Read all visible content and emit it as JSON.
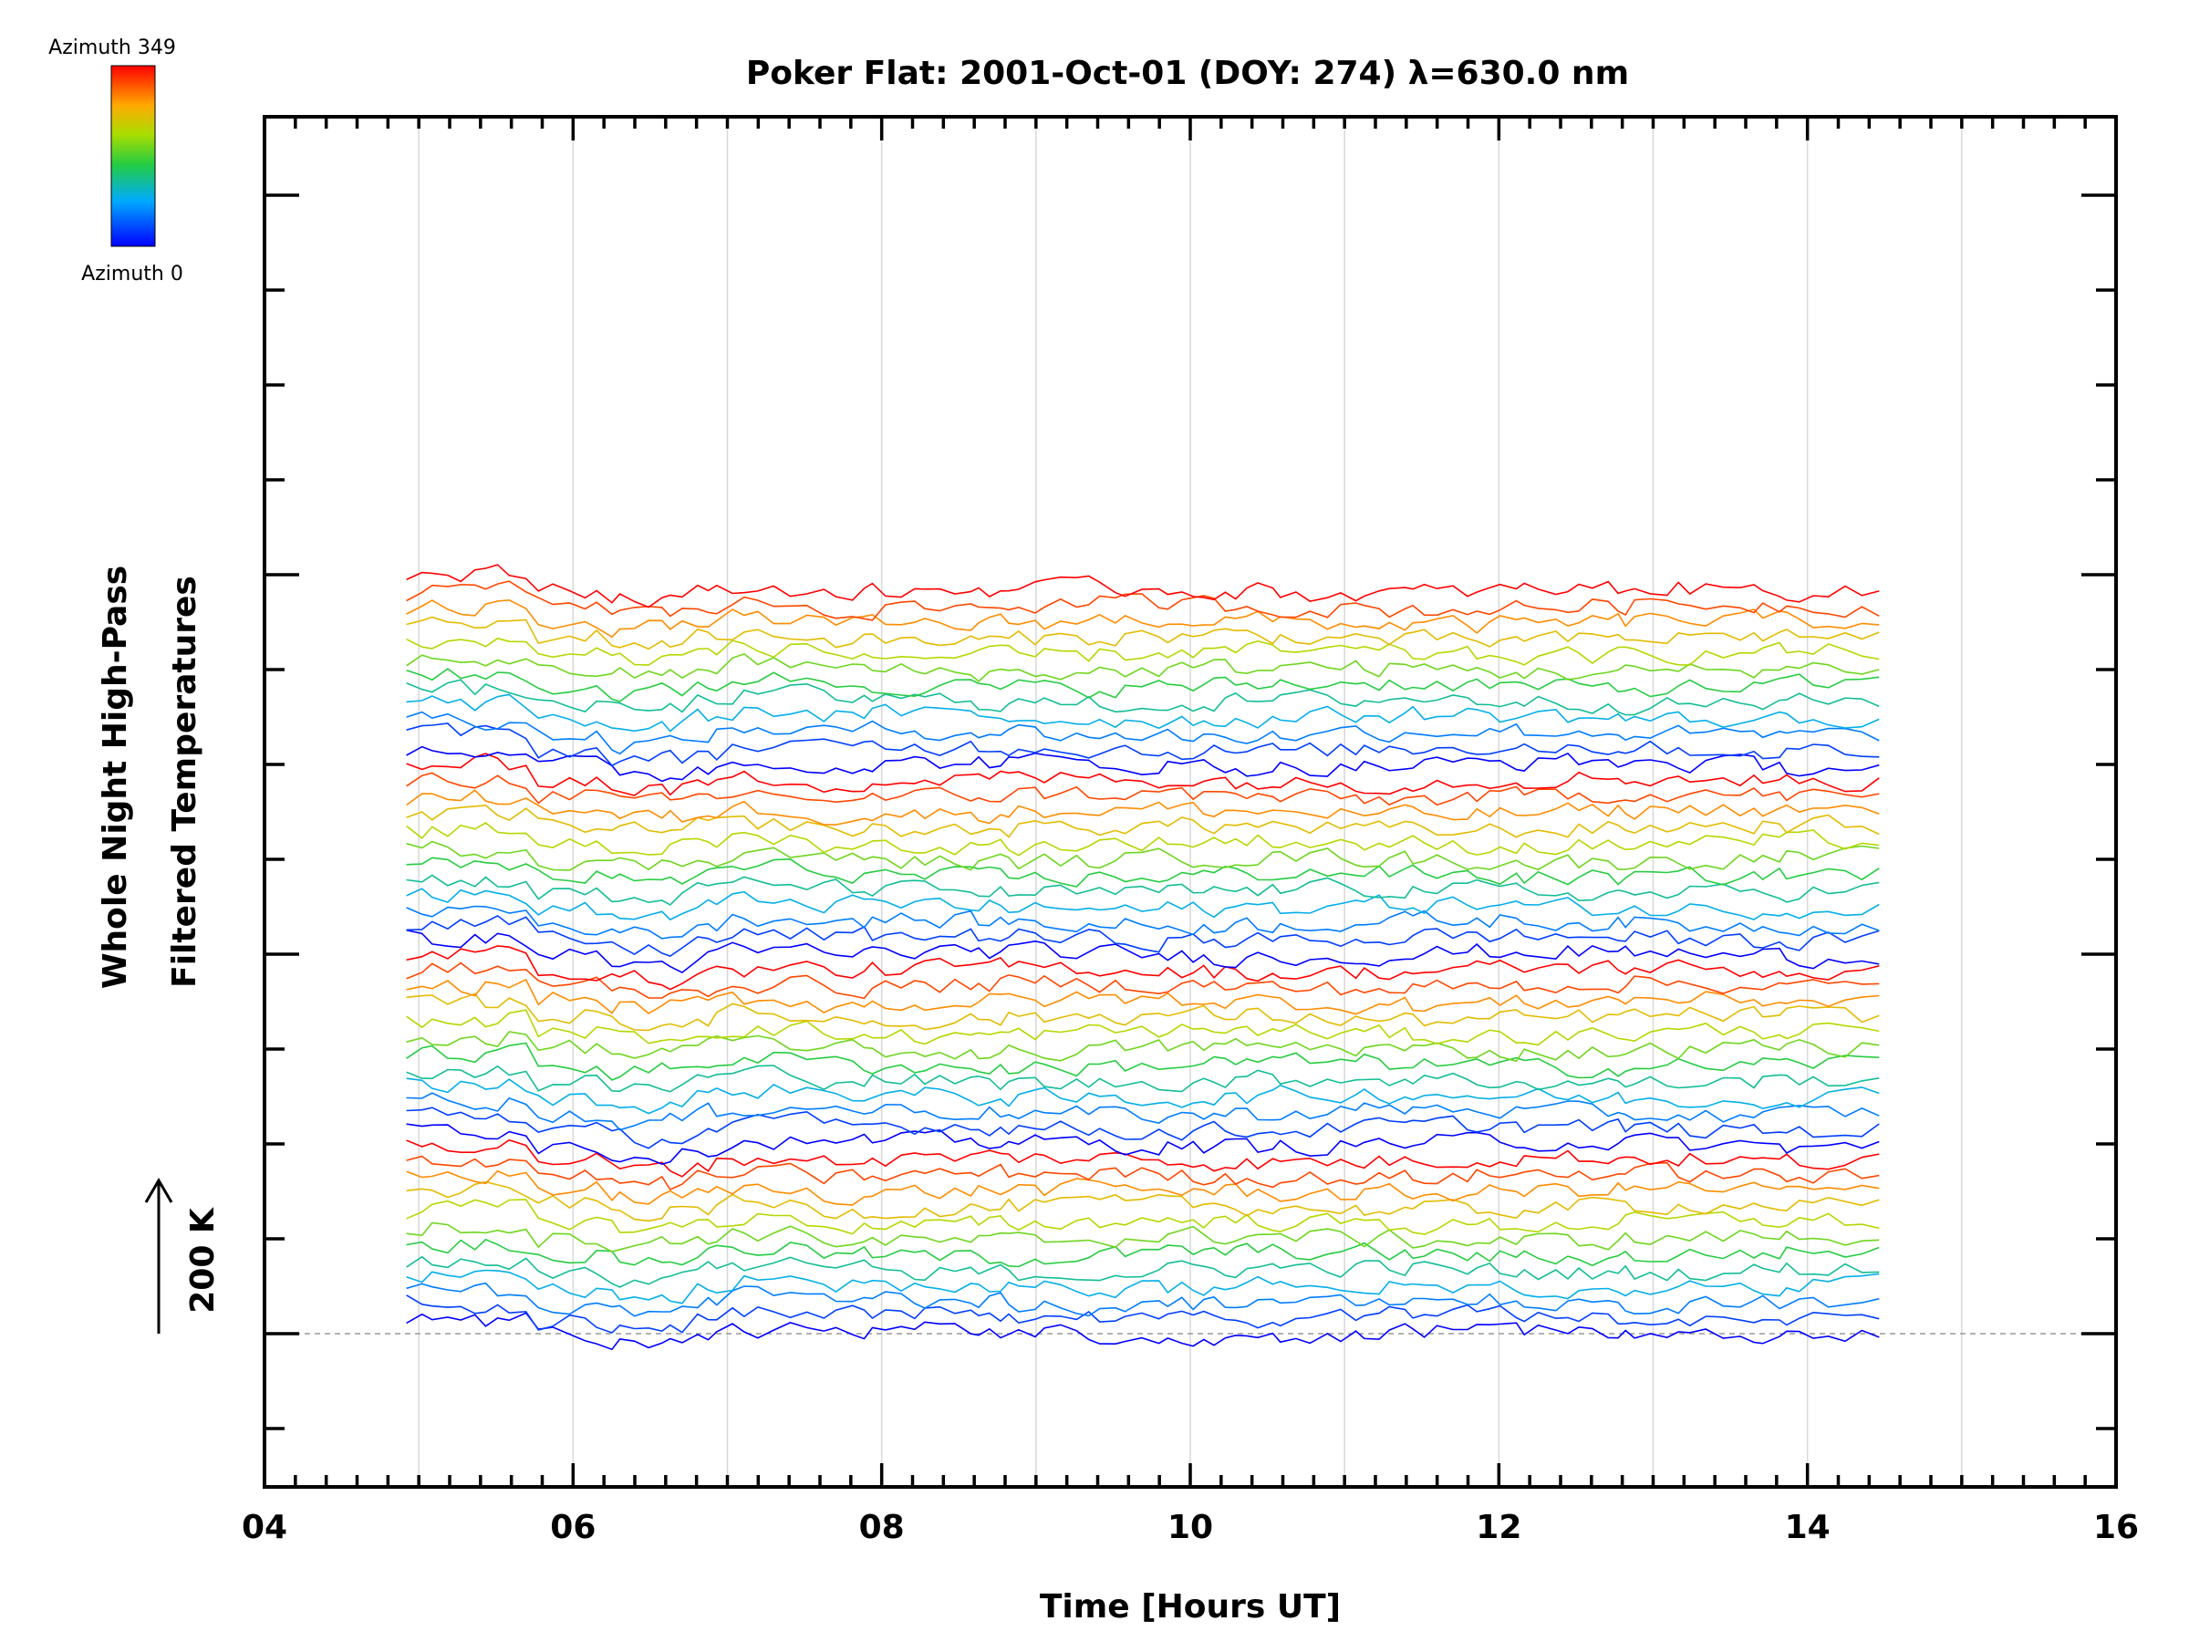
{
  "chart_data": {
    "type": "line",
    "title": "Poker Flat: 2001-Oct-01 (DOY: 274) λ=630.0 nm",
    "xlabel": "Time [Hours UT]",
    "ylabel_line1": "Whole Night High-Pass",
    "ylabel_line2": "Filtered Temperatures",
    "scale_label": "200 K",
    "scale_value_K": 200,
    "xlim": [
      4,
      16
    ],
    "x_ticks": [
      4,
      6,
      8,
      10,
      12,
      14,
      16
    ],
    "x_tick_labels": [
      "04",
      "06",
      "08",
      "10",
      "12",
      "14",
      "16"
    ],
    "data_time_range": [
      4.92,
      14.52
    ],
    "num_traces": 48,
    "trace_offset_K": 21,
    "colorbar": {
      "top_label": "Azimuth 349",
      "bottom_label": "Azimuth 0",
      "colormap": "rainbow",
      "min": 0,
      "max": 349
    },
    "grid": true,
    "baseline_dashed": true
  }
}
